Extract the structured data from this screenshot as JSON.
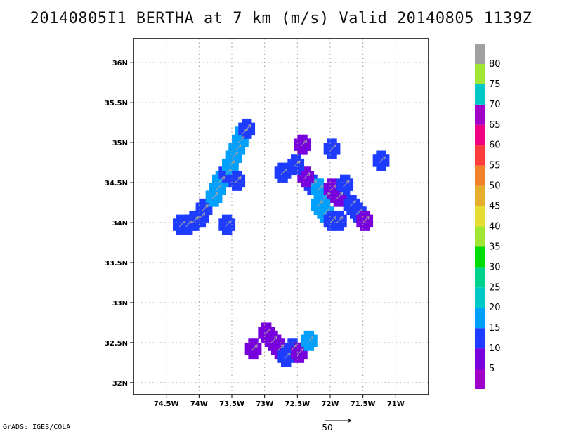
{
  "title": "20140805I1 BERTHA at 7 km (m/s) Valid 20140805 1139Z",
  "footer": "GrADS: IGES/COLA",
  "reference_vector_label": "50",
  "map": {
    "lon_range": [
      -75.0,
      -70.5
    ],
    "lat_range": [
      31.85,
      36.3
    ],
    "lon_ticks": [
      "74.5W",
      "74W",
      "73.5W",
      "73W",
      "72.5W",
      "72W",
      "71.5W",
      "71W"
    ],
    "lat_ticks": [
      "36N",
      "35.5N",
      "35N",
      "34.5N",
      "34N",
      "33.5N",
      "33N",
      "32.5N",
      "32N"
    ],
    "grid": true,
    "grid_style": "dotted",
    "vector_color": "#a0a0a0"
  },
  "colorbar": {
    "levels": [
      "5",
      "10",
      "15",
      "20",
      "25",
      "30",
      "35",
      "40",
      "45",
      "50",
      "55",
      "60",
      "65",
      "70",
      "75",
      "80"
    ],
    "colors": [
      "#a000c8",
      "#7800dc",
      "#1e3cff",
      "#00a0ff",
      "#00c8c8",
      "#00d28c",
      "#00dc00",
      "#a0e632",
      "#e6dc32",
      "#e6af2d",
      "#f08228",
      "#fa3c3c",
      "#f00082",
      "#a000c8",
      "#00c8c8",
      "#a0e632",
      "#a0a0a0"
    ]
  },
  "wind_speed_regions": [
    {
      "name": "northwest band",
      "cells": [
        [
          -74.3,
          33.95,
          10
        ],
        [
          -74.2,
          33.95,
          10
        ],
        [
          -74.1,
          34.0,
          10
        ],
        [
          -74.0,
          34.05,
          10
        ],
        [
          -73.95,
          34.15,
          10
        ],
        [
          -73.8,
          34.3,
          15
        ],
        [
          -73.75,
          34.4,
          15
        ],
        [
          -73.7,
          34.5,
          15
        ],
        [
          -73.6,
          34.6,
          10
        ],
        [
          -73.55,
          34.7,
          15
        ],
        [
          -73.5,
          34.8,
          15
        ],
        [
          -73.45,
          34.9,
          15
        ],
        [
          -73.4,
          35.0,
          15
        ],
        [
          -73.35,
          35.1,
          15
        ],
        [
          -73.3,
          35.15,
          10
        ],
        [
          -73.45,
          34.5,
          10
        ],
        [
          -73.6,
          33.95,
          10
        ]
      ]
    },
    {
      "name": "northeast cluster",
      "cells": [
        [
          -72.3,
          34.45,
          10
        ],
        [
          -72.2,
          34.4,
          15
        ],
        [
          -72.1,
          34.3,
          15
        ],
        [
          -72.0,
          34.4,
          5
        ],
        [
          -71.9,
          34.3,
          5
        ],
        [
          -71.8,
          34.45,
          10
        ],
        [
          -71.7,
          34.2,
          10
        ],
        [
          -71.6,
          34.1,
          10
        ],
        [
          -71.5,
          34.0,
          5
        ],
        [
          -72.2,
          34.2,
          15
        ],
        [
          -72.1,
          34.1,
          15
        ],
        [
          -72.0,
          34.0,
          10
        ],
        [
          -71.9,
          34.0,
          10
        ],
        [
          -72.4,
          34.55,
          5
        ],
        [
          -72.45,
          34.95,
          5
        ],
        [
          -72.0,
          34.9,
          10
        ],
        [
          -71.25,
          34.75,
          10
        ],
        [
          -72.55,
          34.7,
          10
        ],
        [
          -72.75,
          34.6,
          10
        ]
      ]
    },
    {
      "name": "southern cluster",
      "cells": [
        [
          -73.0,
          32.6,
          5
        ],
        [
          -72.9,
          32.5,
          5
        ],
        [
          -72.8,
          32.4,
          5
        ],
        [
          -72.7,
          32.3,
          10
        ],
        [
          -72.6,
          32.4,
          10
        ],
        [
          -72.5,
          32.35,
          5
        ],
        [
          -73.2,
          32.4,
          5
        ],
        [
          -72.35,
          32.5,
          15
        ]
      ]
    }
  ]
}
